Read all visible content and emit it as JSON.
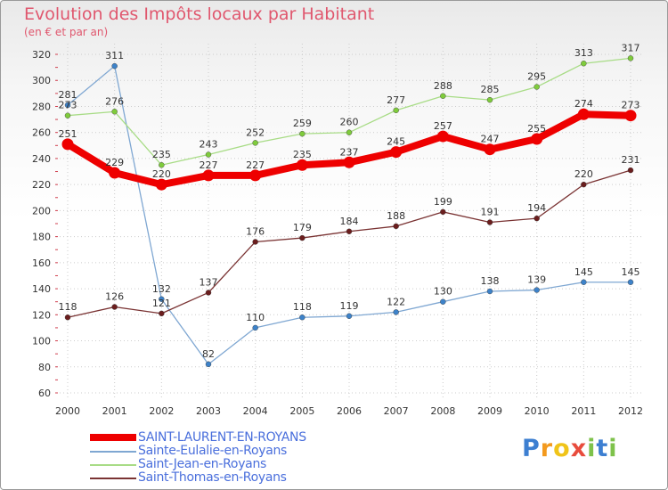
{
  "header": {
    "title": "Evolution des Impôts locaux par Habitant",
    "subtitle": "(en € et par an)"
  },
  "logo": {
    "text": "Proxiti",
    "letters": [
      "P",
      "r",
      "o",
      "x",
      "i",
      "t",
      "i"
    ],
    "colors": [
      "#3d7fd1",
      "#f39a1e",
      "#f0c419",
      "#e84c3d",
      "#7ec24b",
      "#3d7fd1",
      "#7ec24b"
    ]
  },
  "chart_data": {
    "type": "line",
    "title": "Evolution des Impôts locaux par Habitant",
    "subtitle": "(en € et par an)",
    "x": [
      "2000",
      "2001",
      "2002",
      "2003",
      "2004",
      "2005",
      "2006",
      "2007",
      "2008",
      "2009",
      "2010",
      "2011",
      "2012"
    ],
    "ylim": [
      60,
      320
    ],
    "yticks": [
      60,
      80,
      100,
      120,
      140,
      160,
      180,
      200,
      220,
      240,
      260,
      280,
      300,
      320
    ],
    "grid": true,
    "legend_position": "bottom-left",
    "series": [
      {
        "name": "SAINT-LAURENT-EN-ROYANS",
        "color": "#ee0000",
        "marker": "#ee0000",
        "width": 8,
        "radius": 6.5,
        "values": [
          251,
          229,
          220,
          227,
          227,
          235,
          237,
          245,
          257,
          247,
          255,
          274,
          273
        ]
      },
      {
        "name": "Sainte-Eulalie-en-Royans",
        "color": "#7fa7d2",
        "marker": "#3d82c9",
        "width": 1.3,
        "radius": 3,
        "values": [
          281,
          311,
          132,
          82,
          110,
          118,
          119,
          122,
          130,
          138,
          139,
          145,
          145
        ]
      },
      {
        "name": "Saint-Jean-en-Royans",
        "color": "#a8dc86",
        "marker": "#7fcb3c",
        "width": 1.3,
        "radius": 3,
        "values": [
          273,
          276,
          235,
          243,
          252,
          259,
          260,
          277,
          288,
          285,
          295,
          313,
          317
        ]
      },
      {
        "name": "Saint-Thomas-en-Royans",
        "color": "#7a3333",
        "marker": "#6b1e1e",
        "width": 1.3,
        "radius": 3,
        "values": [
          118,
          126,
          121,
          137,
          176,
          179,
          184,
          188,
          199,
          191,
          194,
          220,
          231
        ]
      }
    ]
  }
}
